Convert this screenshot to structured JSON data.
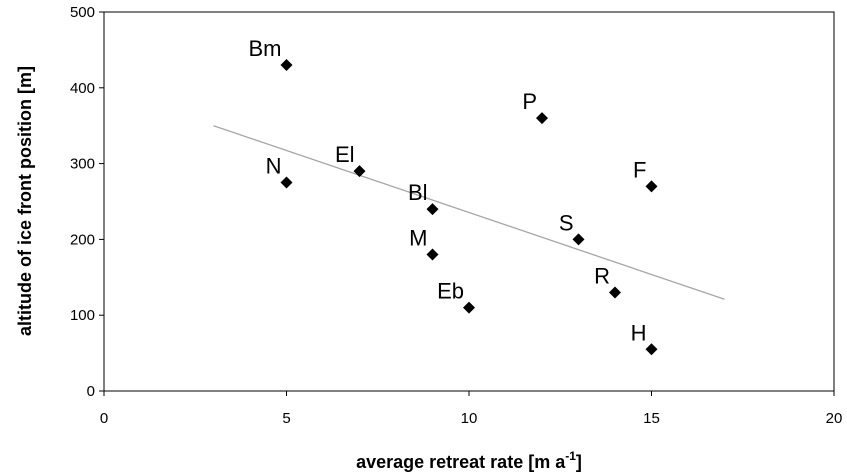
{
  "chart_data": {
    "type": "scatter",
    "title": "",
    "xlabel_main": "average retreat rate [m a",
    "xlabel_sup": "-1",
    "xlabel_tail": "]",
    "ylabel": "altitude of ice front position [m]",
    "xlim": [
      0,
      20
    ],
    "ylim": [
      0,
      500
    ],
    "xticks": [
      "0",
      "5",
      "10",
      "15",
      "20"
    ],
    "yticks": [
      "0",
      "100",
      "200",
      "300",
      "400",
      "500"
    ],
    "points": [
      {
        "label": "Bm",
        "x": 5,
        "y": 430
      },
      {
        "label": "P",
        "x": 12,
        "y": 360
      },
      {
        "label": "El",
        "x": 7,
        "y": 290
      },
      {
        "label": "N",
        "x": 5,
        "y": 275
      },
      {
        "label": "F",
        "x": 15,
        "y": 270
      },
      {
        "label": "Bl",
        "x": 9,
        "y": 240
      },
      {
        "label": "S",
        "x": 13,
        "y": 200
      },
      {
        "label": "M",
        "x": 9,
        "y": 180
      },
      {
        "label": "R",
        "x": 14,
        "y": 130
      },
      {
        "label": "Eb",
        "x": 10,
        "y": 110
      },
      {
        "label": "H",
        "x": 15,
        "y": 55
      }
    ],
    "trendline": {
      "x": [
        3,
        17
      ],
      "y": [
        350,
        121
      ]
    },
    "grid": false,
    "colors": {
      "marker": "#000000",
      "trendline": "#a6a6a6",
      "axis": "#000000"
    }
  }
}
